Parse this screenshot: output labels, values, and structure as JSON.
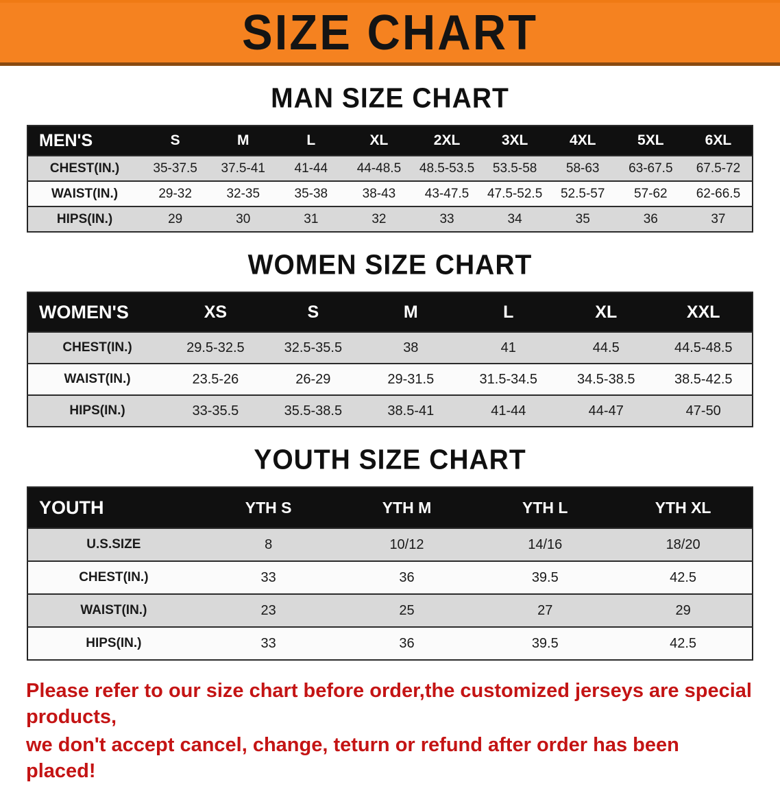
{
  "banner": {
    "title": "SIZE CHART",
    "bg_color": "#F58220"
  },
  "sections": [
    {
      "id": "men",
      "heading": "MAN SIZE CHART",
      "header": [
        "MEN'S",
        "S",
        "M",
        "L",
        "XL",
        "2XL",
        "3XL",
        "4XL",
        "5XL",
        "6XL"
      ],
      "rows": [
        [
          "CHEST(IN.)",
          "35-37.5",
          "37.5-41",
          "41-44",
          "44-48.5",
          "48.5-53.5",
          "53.5-58",
          "58-63",
          "63-67.5",
          "67.5-72"
        ],
        [
          "WAIST(IN.)",
          "29-32",
          "32-35",
          "35-38",
          "38-43",
          "43-47.5",
          "47.5-52.5",
          "52.5-57",
          "57-62",
          "62-66.5"
        ],
        [
          "HIPS(IN.)",
          "29",
          "30",
          "31",
          "32",
          "33",
          "34",
          "35",
          "36",
          "37"
        ]
      ]
    },
    {
      "id": "women",
      "heading": "WOMEN SIZE CHART",
      "header": [
        "WOMEN'S",
        "XS",
        "S",
        "M",
        "L",
        "XL",
        "XXL"
      ],
      "rows": [
        [
          "CHEST(IN.)",
          "29.5-32.5",
          "32.5-35.5",
          "38",
          "41",
          "44.5",
          "44.5-48.5"
        ],
        [
          "WAIST(IN.)",
          "23.5-26",
          "26-29",
          "29-31.5",
          "31.5-34.5",
          "34.5-38.5",
          "38.5-42.5"
        ],
        [
          "HIPS(IN.)",
          "33-35.5",
          "35.5-38.5",
          "38.5-41",
          "41-44",
          "44-47",
          "47-50"
        ]
      ]
    },
    {
      "id": "youth",
      "heading": "YOUTH SIZE CHART",
      "header": [
        "YOUTH",
        "YTH S",
        "YTH M",
        "YTH L",
        "YTH XL"
      ],
      "rows": [
        [
          "U.S.SIZE",
          "8",
          "10/12",
          "14/16",
          "18/20"
        ],
        [
          "CHEST(IN.)",
          "33",
          "36",
          "39.5",
          "42.5"
        ],
        [
          "WAIST(IN.)",
          "23",
          "25",
          "27",
          "29"
        ],
        [
          "HIPS(IN.)",
          "33",
          "36",
          "39.5",
          "42.5"
        ]
      ]
    }
  ],
  "footer": {
    "color": "#c41414",
    "lines": [
      "Please refer to our size chart before order,the customized jerseys are special products,",
      "we don't accept cancel, change, teturn or refund after order has been placed!"
    ]
  }
}
